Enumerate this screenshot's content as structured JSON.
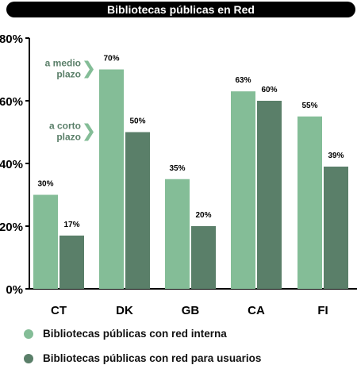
{
  "title": "Bibliotecas públicas en Red",
  "colors": {
    "series1": "#84bd97",
    "series2": "#5a7f69",
    "title_bg": "#000000",
    "arrow": "#84bd97",
    "annotation": "#5a7f69"
  },
  "annotations": [
    {
      "text_line1": "a medio",
      "text_line2": "plazo"
    },
    {
      "text_line1": "a corto",
      "text_line2": "plazo"
    }
  ],
  "chart_data": {
    "type": "bar",
    "categories": [
      "CT",
      "DK",
      "GB",
      "CA",
      "FI"
    ],
    "series": [
      {
        "name": "Bibliotecas públicas con red interna",
        "values": [
          30,
          70,
          35,
          63,
          55
        ]
      },
      {
        "name": "Bibliotecas públicas con red para usuarios",
        "values": [
          17,
          50,
          20,
          60,
          39
        ]
      }
    ],
    "data_labels": [
      [
        "30%",
        "70%",
        "35%",
        "63%",
        "55%"
      ],
      [
        "17%",
        "50%",
        "20%",
        "60%",
        "39%"
      ]
    ],
    "yticks": [
      "0%",
      "20%",
      "40%",
      "60%",
      "80%"
    ],
    "ylim": [
      0,
      80
    ],
    "legend_position": "bottom-left"
  }
}
